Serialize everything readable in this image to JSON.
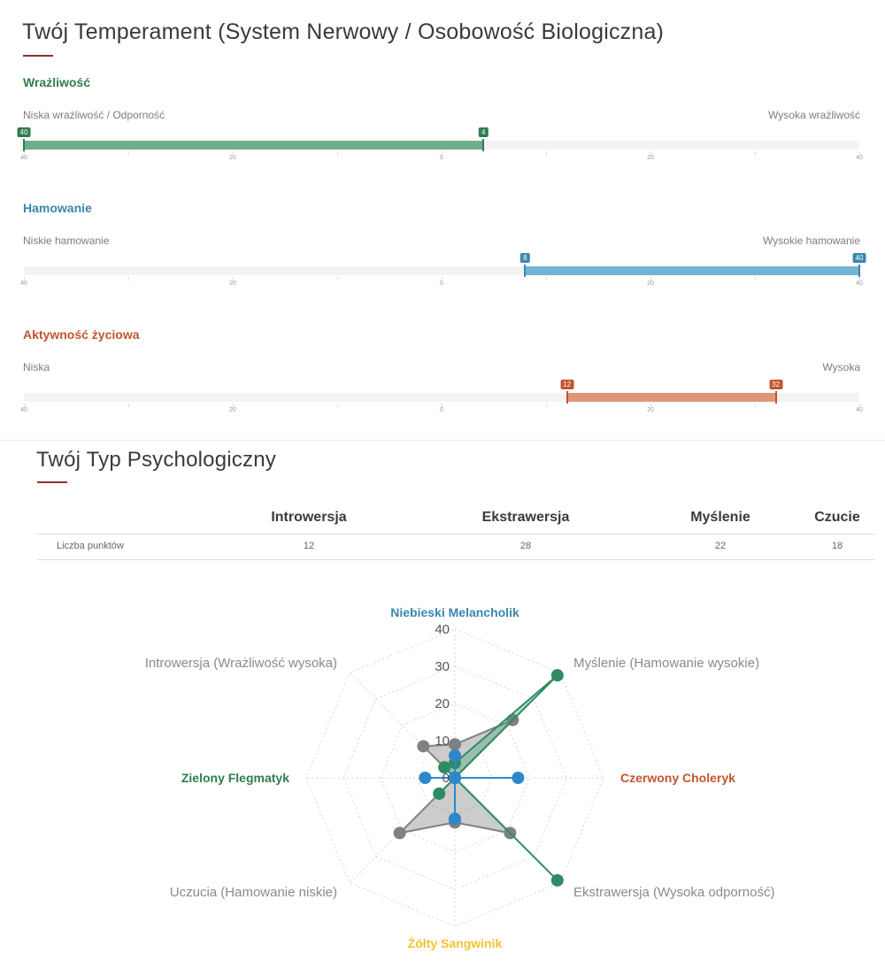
{
  "temperament": {
    "title": "Twój Temperament (System Nerwowy / Osobowość Biologiczna)",
    "scales": [
      {
        "name": "Wrażliwość",
        "color": "#2e7d4f",
        "fill_color": "#6fad8b",
        "left_label": "Niska wrażliwość / Odporność",
        "right_label": "Wysoka wrażliwość",
        "from": -40,
        "to": 4,
        "from_label": "40",
        "to_label": "4"
      },
      {
        "name": "Hamowanie",
        "color": "#3a87ae",
        "fill_color": "#73b3d3",
        "left_label": "Niskie hamowanie",
        "right_label": "Wysokie hamowanie",
        "from": 8,
        "to": 40,
        "from_label": "8",
        "to_label": "40"
      },
      {
        "name": "Aktywność życiowa",
        "color": "#c0562f",
        "fill_color": "#e0957a",
        "left_label": "Niska",
        "right_label": "Wysoka",
        "from": 12,
        "to": 32,
        "from_label": "12",
        "to_label": "32"
      }
    ],
    "axis_ticks": [
      {
        "value": -40,
        "label": "40"
      },
      {
        "value": -20,
        "label": "20"
      },
      {
        "value": 0,
        "label": "0"
      },
      {
        "value": 20,
        "label": "20"
      },
      {
        "value": 40,
        "label": "40"
      }
    ]
  },
  "psych_type": {
    "title": "Twój Typ Psychologiczny",
    "columns": [
      "Introwersja",
      "Ekstrawersja",
      "Myślenie",
      "Czucie"
    ],
    "row_label": "Liczba punktów",
    "row_values": [
      "12",
      "28",
      "22",
      "18"
    ]
  },
  "chart_data": {
    "type": "radar",
    "axes": [
      "Niebieski Melancholik",
      "Myślenie (Hamowanie wysokie)",
      "Czerwony Choleryk",
      "Ekstrawersja (Wysoka odporność)",
      "Żółty Sangwinik",
      "Uczucia (Hamowanie niskie)",
      "Zielony Flegmatyk",
      "Introwersja (Wrażliwość wysoka)"
    ],
    "axis_colors": [
      "#3a87ae",
      "#8a8a8a",
      "#c0562f",
      "#8a8a8a",
      "#f0c330",
      "#8a8a8a",
      "#2e7d4f",
      "#8a8a8a"
    ],
    "axis_bold": [
      true,
      false,
      true,
      false,
      true,
      false,
      true,
      false
    ],
    "rlim": [
      0,
      40
    ],
    "r_ticks": [
      "0",
      "10",
      "20",
      "30",
      "40"
    ],
    "grid": true,
    "series": [
      {
        "color": "#808080",
        "fill": "rgba(110,110,110,0.35)",
        "values": [
          9,
          22,
          0,
          21,
          12,
          21,
          0,
          12
        ]
      },
      {
        "color": "#2e8b62",
        "fill": "rgba(60,160,120,0.35)",
        "values": [
          4,
          39,
          0,
          39,
          0,
          6,
          0,
          4
        ]
      },
      {
        "color": "#2c88c8",
        "fill": "rgba(44,136,200,0.35)",
        "values": [
          6,
          0,
          17,
          0,
          11,
          0,
          8,
          0
        ]
      }
    ]
  }
}
